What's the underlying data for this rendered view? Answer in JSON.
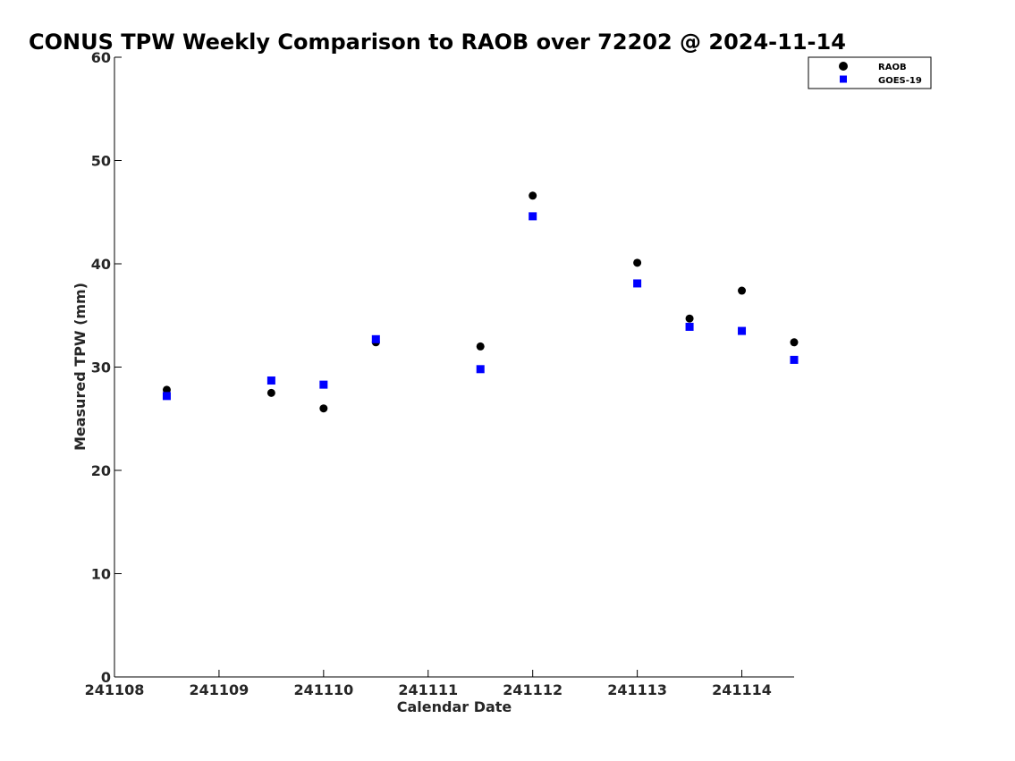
{
  "chart_data": {
    "type": "scatter",
    "title": "CONUS TPW Weekly Comparison to RAOB over 72202 @ 2024-11-14",
    "xlabel": "Calendar Date",
    "ylabel": "Measured TPW (mm)",
    "x_tick_labels": [
      "241108",
      "241109",
      "241110",
      "241111",
      "241112",
      "241113",
      "241114"
    ],
    "y_tick_labels": [
      "0",
      "10",
      "20",
      "30",
      "40",
      "50",
      "60"
    ],
    "xlim": [
      0,
      6.5
    ],
    "ylim": [
      0,
      60
    ],
    "grid": false,
    "legend_position": "top-right",
    "series": [
      {
        "name": "RAOB",
        "marker": "circle",
        "color": "#000000",
        "points": [
          {
            "x": 0.5,
            "y": 27.8
          },
          {
            "x": 1.5,
            "y": 27.5
          },
          {
            "x": 2.0,
            "y": 26.0
          },
          {
            "x": 2.5,
            "y": 32.4
          },
          {
            "x": 3.5,
            "y": 32.0
          },
          {
            "x": 4.0,
            "y": 46.6
          },
          {
            "x": 5.0,
            "y": 40.1
          },
          {
            "x": 5.5,
            "y": 34.7
          },
          {
            "x": 6.0,
            "y": 37.4
          },
          {
            "x": 6.5,
            "y": 32.4
          }
        ]
      },
      {
        "name": "GOES-19",
        "marker": "square",
        "color": "#0000ff",
        "points": [
          {
            "x": 0.5,
            "y": 27.2
          },
          {
            "x": 1.5,
            "y": 28.7
          },
          {
            "x": 2.0,
            "y": 28.3
          },
          {
            "x": 2.5,
            "y": 32.7
          },
          {
            "x": 3.5,
            "y": 29.8
          },
          {
            "x": 4.0,
            "y": 44.6
          },
          {
            "x": 5.0,
            "y": 38.1
          },
          {
            "x": 5.5,
            "y": 33.9
          },
          {
            "x": 6.0,
            "y": 33.5
          },
          {
            "x": 6.5,
            "y": 30.7
          }
        ]
      }
    ]
  }
}
